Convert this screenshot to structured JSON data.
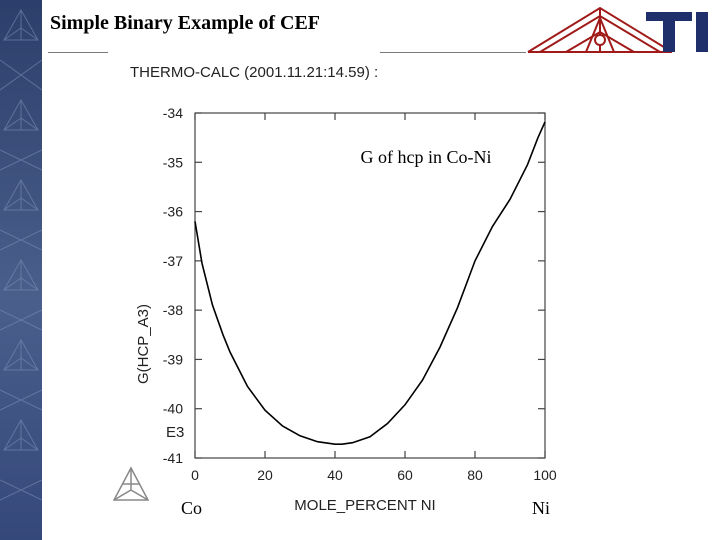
{
  "slide": {
    "title": "Simple Binary Example of CEF"
  },
  "logo": {
    "text": "TI"
  },
  "chart_data": {
    "type": "line",
    "header": "THERMO-CALC (2001.11.21:14.59) :",
    "title": "G of hcp in Co-Ni",
    "xlabel": "MOLE_PERCENT NI",
    "ylabel": "G(HCP_A3)",
    "y_unit_label": "E3",
    "left_end_label": "Co",
    "right_end_label": "Ni",
    "xlim": [
      0,
      100
    ],
    "ylim": [
      -41,
      -34
    ],
    "x_ticks": [
      "0",
      "20",
      "40",
      "60",
      "80",
      "100"
    ],
    "y_ticks": [
      "-34",
      "-35",
      "-36",
      "-37",
      "-38",
      "-39",
      "-40",
      "-41"
    ],
    "series": [
      {
        "x": [
          0,
          2,
          5,
          8,
          10,
          15,
          20,
          25,
          30,
          35,
          40,
          42,
          45,
          50,
          55,
          60,
          65,
          70,
          75,
          80,
          85,
          90,
          95,
          98,
          100
        ],
        "y": [
          -36.2,
          -37.05,
          -37.9,
          -38.5,
          -38.85,
          -39.55,
          -40.03,
          -40.35,
          -40.55,
          -40.67,
          -40.72,
          -40.72,
          -40.69,
          -40.57,
          -40.3,
          -39.92,
          -39.42,
          -38.75,
          -37.95,
          -37.0,
          -36.3,
          -35.75,
          -35.05,
          -34.5,
          -34.18
        ]
      }
    ],
    "grid": false,
    "colors": {
      "line": "#000000",
      "axis": "#444444"
    }
  }
}
